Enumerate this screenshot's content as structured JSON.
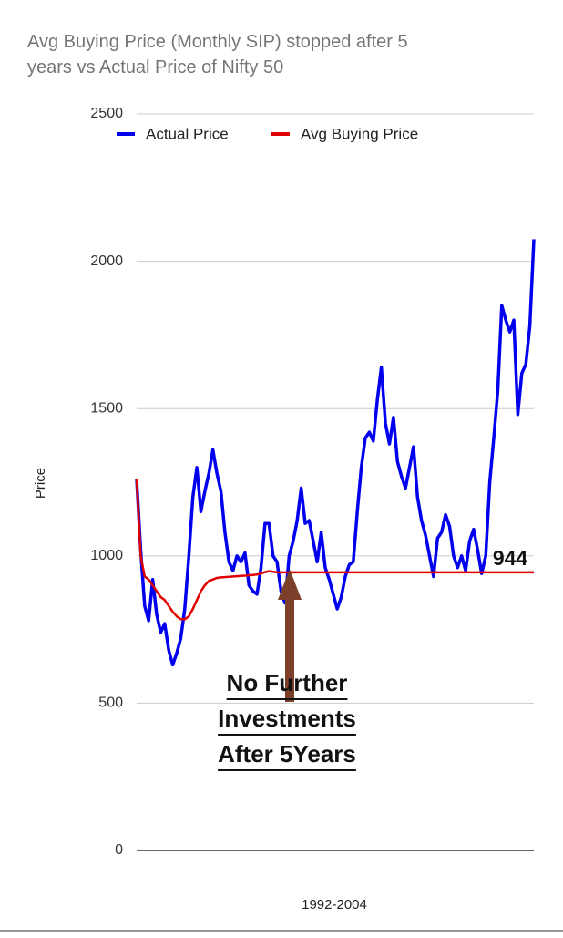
{
  "chart_data": {
    "type": "line",
    "title": "Avg Buying Price (Monthly SIP) stopped after 5 years vs Actual Price of Nifty 50",
    "x_label": "1992-2004",
    "y_label": "Price",
    "ylim": [
      0,
      2500
    ],
    "yticks": [
      0,
      500,
      1000,
      1500,
      2000,
      2500
    ],
    "grid": true,
    "legend": "top",
    "series": [
      {
        "name": "Actual Price",
        "color": "#0000ee",
        "values": [
          1260,
          1020,
          830,
          780,
          920,
          800,
          740,
          770,
          680,
          630,
          670,
          720,
          820,
          1000,
          1200,
          1300,
          1150,
          1220,
          1280,
          1360,
          1280,
          1220,
          1080,
          980,
          950,
          1000,
          980,
          1010,
          900,
          880,
          870,
          960,
          1110,
          1110,
          1000,
          980,
          880,
          840,
          1000,
          1050,
          1120,
          1230,
          1110,
          1120,
          1050,
          980,
          1080,
          960,
          920,
          870,
          820,
          860,
          930,
          970,
          980,
          1150,
          1300,
          1400,
          1420,
          1390,
          1530,
          1640,
          1450,
          1380,
          1470,
          1320,
          1270,
          1230,
          1300,
          1370,
          1200,
          1120,
          1070,
          1000,
          930,
          1060,
          1080,
          1140,
          1100,
          1000,
          960,
          1000,
          950,
          1050,
          1090,
          1020,
          940,
          1000,
          1250,
          1400,
          1560,
          1850,
          1800,
          1760,
          1800,
          1480,
          1620,
          1650,
          1780,
          2075
        ]
      },
      {
        "name": "Avg Buying Price",
        "color": "#e00000",
        "values": [
          1260,
          1000,
          930,
          920,
          900,
          880,
          860,
          850,
          830,
          810,
          795,
          785,
          785,
          795,
          820,
          850,
          880,
          900,
          915,
          920,
          925,
          927,
          928,
          929,
          930,
          931,
          932,
          933,
          934,
          935,
          937,
          940,
          945,
          948,
          946,
          944,
          944,
          944,
          944,
          944,
          944,
          944,
          944,
          944,
          944,
          944,
          944,
          944,
          944,
          944,
          944,
          944,
          944,
          944,
          944,
          944,
          944,
          944,
          944,
          944,
          944,
          944,
          944,
          944,
          944,
          944,
          944,
          944,
          944,
          944,
          944,
          944,
          944,
          944,
          944,
          944,
          944,
          944,
          944,
          944,
          944,
          944,
          944,
          944,
          944,
          944,
          944,
          944,
          944,
          944,
          944,
          944,
          944,
          944,
          944,
          944,
          944,
          944,
          944,
          944
        ]
      }
    ],
    "annotations": [
      {
        "text": "944",
        "value": 944
      },
      {
        "lines": [
          "No Further",
          "Investments",
          "After 5Years"
        ]
      }
    ]
  }
}
